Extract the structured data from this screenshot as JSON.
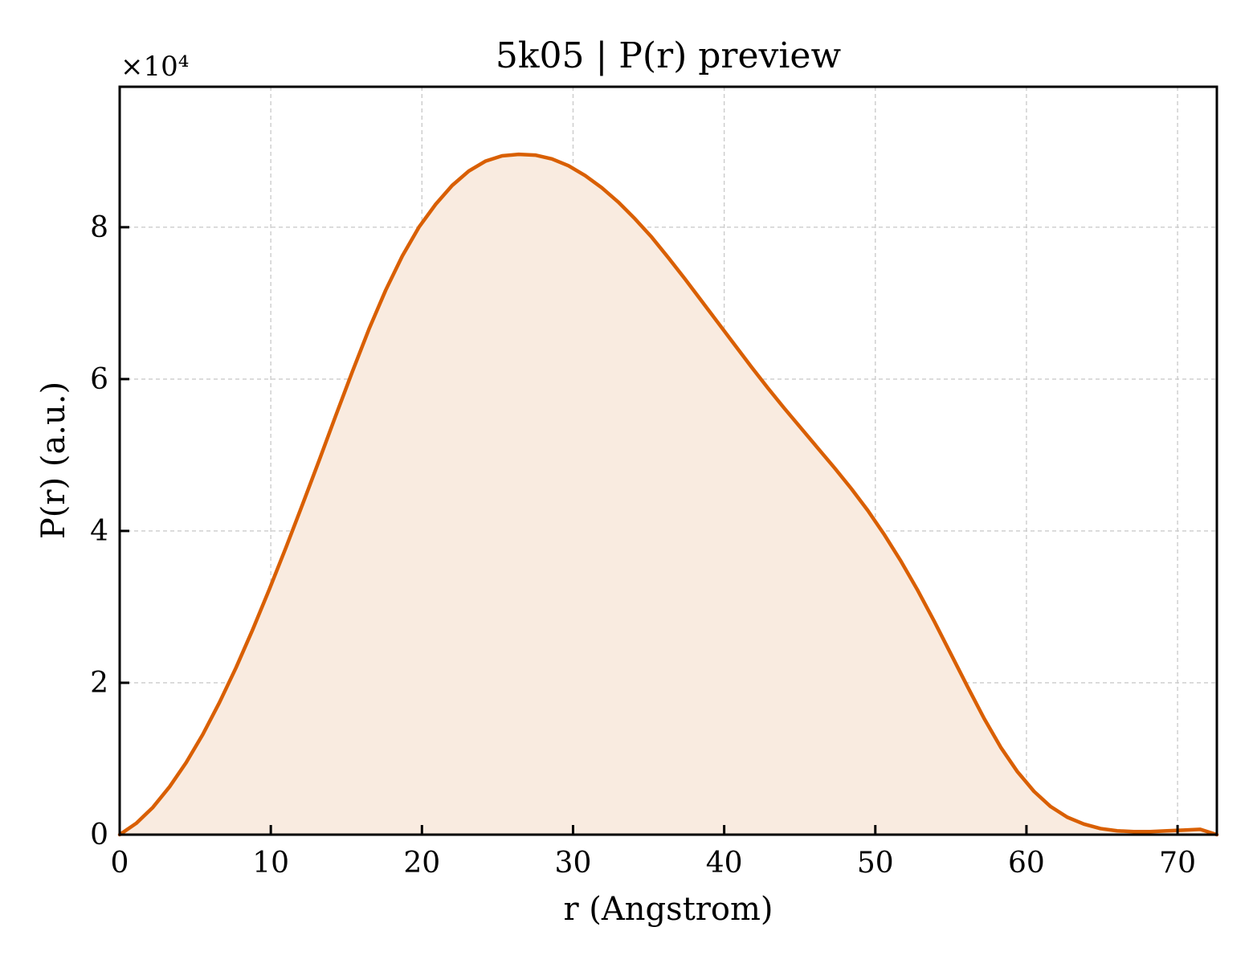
{
  "chart_data": {
    "type": "area",
    "title": "5k05 | P(r) preview",
    "xlabel": "r (Angstrom)",
    "ylabel": "P(r) (a.u.)",
    "y_multiplier_label": "×10⁴",
    "xlim": [
      0,
      72.6
    ],
    "ylim": [
      0,
      9.85
    ],
    "x_ticks": [
      0,
      10,
      20,
      30,
      40,
      50,
      60,
      70
    ],
    "y_ticks": [
      0,
      2,
      4,
      6,
      8
    ],
    "grid": true,
    "line_color": "#d95f02",
    "fill_color": "#f9ebe0",
    "series": [
      {
        "x": [
          0,
          1.1,
          2.2,
          3.3,
          4.4,
          5.5,
          6.6,
          7.7,
          8.8,
          9.9,
          11.0,
          12.1,
          13.2,
          14.3,
          15.4,
          16.5,
          17.6,
          18.7,
          19.8,
          20.9,
          22.0,
          23.1,
          24.2,
          25.3,
          26.4,
          27.5,
          28.6,
          29.7,
          30.8,
          31.9,
          33.0,
          34.1,
          35.2,
          36.3,
          37.4,
          38.5,
          39.6,
          40.7,
          41.8,
          42.9,
          44.0,
          45.1,
          46.2,
          47.3,
          48.4,
          49.5,
          50.6,
          51.7,
          52.8,
          53.9,
          55.0,
          56.1,
          57.2,
          58.3,
          59.4,
          60.5,
          61.6,
          62.7,
          63.8,
          64.9,
          66.0,
          67.1,
          68.2,
          69.3,
          70.4,
          71.5,
          72.6
        ],
        "y": [
          0.0,
          0.15,
          0.36,
          0.63,
          0.95,
          1.32,
          1.74,
          2.2,
          2.7,
          3.23,
          3.78,
          4.35,
          4.93,
          5.52,
          6.1,
          6.66,
          7.17,
          7.62,
          8.0,
          8.3,
          8.55,
          8.74,
          8.87,
          8.94,
          8.96,
          8.95,
          8.9,
          8.81,
          8.68,
          8.52,
          8.33,
          8.11,
          7.87,
          7.6,
          7.32,
          7.03,
          6.74,
          6.45,
          6.16,
          5.88,
          5.61,
          5.35,
          5.09,
          4.83,
          4.56,
          4.27,
          3.95,
          3.6,
          3.22,
          2.81,
          2.38,
          1.95,
          1.53,
          1.15,
          0.83,
          0.57,
          0.37,
          0.23,
          0.14,
          0.08,
          0.05,
          0.04,
          0.04,
          0.05,
          0.06,
          0.07,
          0.0
        ]
      }
    ]
  }
}
